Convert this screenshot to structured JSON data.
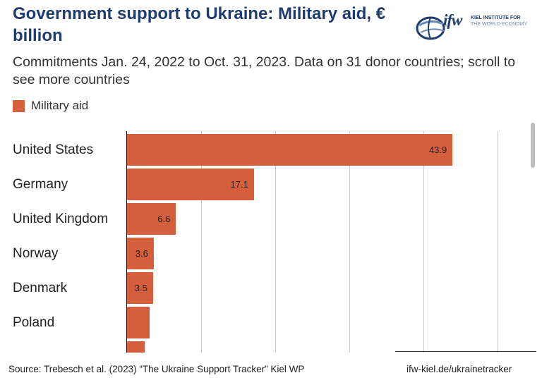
{
  "header": {
    "title": "Government support to Ukraine: Military aid, € billion",
    "subtitle": "Commitments Jan. 24, 2022 to Oct. 31, 2023. Data on 31 donor countries; scroll to see more countries"
  },
  "logo": {
    "word": "ifw",
    "line1": "KIEL INSTITUTE FOR",
    "line2": "THE WORLD ECONOMY",
    "colors": {
      "navy": "#1f3c6e",
      "light_blue": "#6b8bb5"
    }
  },
  "legend": {
    "label": "Military aid",
    "color": "#d55e3c"
  },
  "chart_data": {
    "type": "bar",
    "orientation": "horizontal",
    "categories": [
      "United States",
      "Germany",
      "United Kingdom",
      "Norway",
      "Denmark",
      "Poland",
      ""
    ],
    "series": [
      {
        "name": "Military aid",
        "color": "#d55e3c",
        "values": [
          43.9,
          17.1,
          6.6,
          3.6,
          3.5,
          3.0,
          2.4
        ],
        "labels": [
          "43.9",
          "17.1",
          "6.6",
          "3.6",
          "3.5",
          "",
          ""
        ]
      }
    ],
    "xlim": [
      0,
      55
    ],
    "grid_step": 10,
    "grid": true,
    "legend_position": "top-left"
  },
  "footer": {
    "source": "Source: Trebesch et al. (2023) “The Ukraine Support Tracker” Kiel WP",
    "site": "ifw-kiel.de/ukrainetracker"
  }
}
